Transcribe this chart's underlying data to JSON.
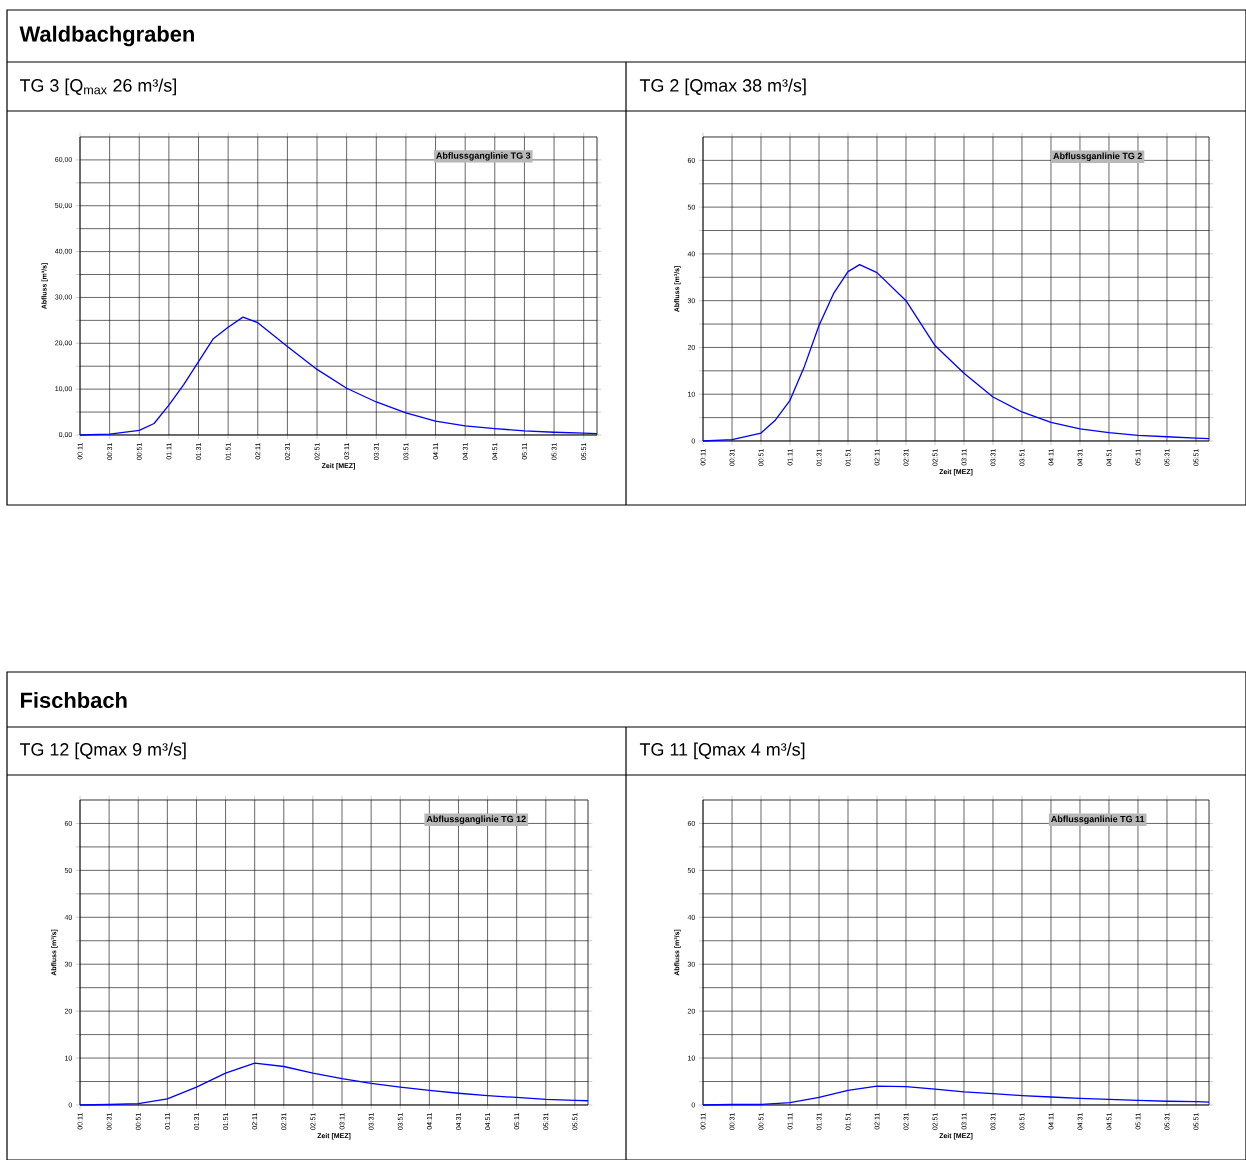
{
  "chart_data": [
    {
      "type": "line",
      "title": "Waldbachgraben",
      "subtitle": "TG 3 [Q$_{max}$ 26 m³/s]",
      "xlabel": "Zeit [MEZ]",
      "ylabel": "Abfluss [m³/s]",
      "annotations": [
        "Abflussganglinie TG 3"
      ],
      "grid": true,
      "x": [
        0.1833,
        0.5167,
        0.85,
        1.0167,
        1.1833,
        1.35,
        1.5167,
        1.6833,
        1.85,
        2.0167,
        2.1833,
        2.5167,
        2.85,
        3.1833,
        3.5167,
        3.85,
        4.1833,
        4.5167,
        4.85,
        5.1833,
        5.5167,
        5.85,
        6.0
      ],
      "series": [
        {
          "color": "#0000ff",
          "values": [
            0,
            0.2,
            1,
            2.5,
            6.5,
            11,
            16,
            21,
            23.5,
            25.7,
            24.5,
            19.3,
            14.3,
            10.2,
            7.2,
            4.8,
            3.0,
            2.0,
            1.4,
            0.9,
            0.6,
            0.4,
            0.3
          ]
        }
      ],
      "xlim": [
        0.1833,
        6.0
      ],
      "ylim": [
        0,
        65
      ],
      "xticks": [
        {
          "value": 0.1833,
          "label": "00:11"
        },
        {
          "value": 0.5167,
          "label": "00:31"
        },
        {
          "value": 0.85,
          "label": "00:51"
        },
        {
          "value": 1.1833,
          "label": "01:11"
        },
        {
          "value": 1.5167,
          "label": "01:31"
        },
        {
          "value": 1.85,
          "label": "01:51"
        },
        {
          "value": 2.1833,
          "label": "02:11"
        },
        {
          "value": 2.5167,
          "label": "02:31"
        },
        {
          "value": 2.85,
          "label": "02:51"
        },
        {
          "value": 3.1833,
          "label": "03:11"
        },
        {
          "value": 3.5167,
          "label": "03:31"
        },
        {
          "value": 3.85,
          "label": "03:51"
        },
        {
          "value": 4.1833,
          "label": "04:11"
        },
        {
          "value": 4.5167,
          "label": "04:31"
        },
        {
          "value": 4.85,
          "label": "04:51"
        },
        {
          "value": 5.1833,
          "label": "05:11"
        },
        {
          "value": 5.5167,
          "label": "05:31"
        },
        {
          "value": 5.85,
          "label": "05:51"
        }
      ],
      "yticks": [
        {
          "value": 0,
          "label": "0,00"
        },
        {
          "value": 5,
          "label": null
        },
        {
          "value": 10,
          "label": "10,00"
        },
        {
          "value": 15,
          "label": null
        },
        {
          "value": 20,
          "label": "20,00"
        },
        {
          "value": 25,
          "label": null
        },
        {
          "value": 30,
          "label": "30,00"
        },
        {
          "value": 35,
          "label": null
        },
        {
          "value": 40,
          "label": "40,00"
        },
        {
          "value": 45,
          "label": null
        },
        {
          "value": 50,
          "label": "50,00"
        },
        {
          "value": 55,
          "label": null
        },
        {
          "value": 60,
          "label": "60,00"
        }
      ]
    },
    {
      "type": "line",
      "subtitle": "TG 2 [Qmax 38 m³/s]",
      "xlabel": "Zeit [MEZ]",
      "ylabel": "Abfluss [m³/s]",
      "annotations": [
        "Abflussganlinie TG 2"
      ],
      "grid": true,
      "x": [
        0.1833,
        0.5167,
        0.85,
        1.0167,
        1.1833,
        1.35,
        1.5167,
        1.6833,
        1.85,
        1.9833,
        2.1833,
        2.5167,
        2.85,
        3.1833,
        3.5167,
        3.85,
        4.1833,
        4.5167,
        4.85,
        5.1833,
        5.5167,
        5.85,
        6.0
      ],
      "series": [
        {
          "color": "#0000ff",
          "values": [
            0,
            0.3,
            1.7,
            4.5,
            8.7,
            16,
            24.7,
            31.5,
            36.2,
            37.7,
            36,
            30,
            20.4,
            14.5,
            9.4,
            6.2,
            4.0,
            2.6,
            1.8,
            1.2,
            0.9,
            0.6,
            0.5
          ]
        }
      ],
      "xlim": [
        0.1833,
        6.0
      ],
      "ylim": [
        0,
        65
      ],
      "xticks": [
        {
          "value": 0.1833,
          "label": "00:11"
        },
        {
          "value": 0.5167,
          "label": "00:31"
        },
        {
          "value": 0.85,
          "label": "00:51"
        },
        {
          "value": 1.1833,
          "label": "01:11"
        },
        {
          "value": 1.5167,
          "label": "01:31"
        },
        {
          "value": 1.85,
          "label": "01:51"
        },
        {
          "value": 2.1833,
          "label": "02:11"
        },
        {
          "value": 2.5167,
          "label": "02:31"
        },
        {
          "value": 2.85,
          "label": "02:51"
        },
        {
          "value": 3.1833,
          "label": "03:11"
        },
        {
          "value": 3.5167,
          "label": "03:31"
        },
        {
          "value": 3.85,
          "label": "03:51"
        },
        {
          "value": 4.1833,
          "label": "04:11"
        },
        {
          "value": 4.5167,
          "label": "04:31"
        },
        {
          "value": 4.85,
          "label": "04:51"
        },
        {
          "value": 5.1833,
          "label": "05:11"
        },
        {
          "value": 5.5167,
          "label": "05:31"
        },
        {
          "value": 5.85,
          "label": "05:51"
        }
      ],
      "yticks": [
        0,
        {
          "value": 5,
          "label": null
        },
        10,
        {
          "value": 15,
          "label": null
        },
        20,
        {
          "value": 25,
          "label": null
        },
        30,
        {
          "value": 35,
          "label": null
        },
        40,
        {
          "value": 45,
          "label": null
        },
        50,
        {
          "value": 55,
          "label": null
        },
        60
      ]
    },
    {
      "type": "line",
      "title": "Fischbach",
      "subtitle": "TG 12 [Qmax 9 m³/s]",
      "xlabel": "Zeit [MEZ]",
      "ylabel": "Abfluss [m³/s]",
      "annotations": [
        "Abflussganglinie TG 12"
      ],
      "grid": true,
      "x": [
        0.1833,
        0.5167,
        0.85,
        1.1833,
        1.5167,
        1.85,
        2.1833,
        2.5167,
        2.85,
        3.1833,
        3.5167,
        3.85,
        4.1833,
        4.5167,
        4.85,
        5.1833,
        5.5167,
        5.85,
        6.0
      ],
      "series": [
        {
          "color": "#0000ff",
          "values": [
            0,
            0.1,
            0.3,
            1.3,
            3.8,
            6.8,
            8.9,
            8.2,
            6.8,
            5.6,
            4.6,
            3.8,
            3.1,
            2.5,
            2.0,
            1.6,
            1.2,
            1.0,
            0.9
          ]
        }
      ],
      "xlim": [
        0.1833,
        6.0
      ],
      "ylim": [
        0,
        65
      ],
      "xticks": [
        {
          "value": 0.1833,
          "label": "00:11"
        },
        {
          "value": 0.5167,
          "label": "00:31"
        },
        {
          "value": 0.85,
          "label": "00:51"
        },
        {
          "value": 1.1833,
          "label": "01:11"
        },
        {
          "value": 1.5167,
          "label": "01:31"
        },
        {
          "value": 1.85,
          "label": "01:51"
        },
        {
          "value": 2.1833,
          "label": "02:11"
        },
        {
          "value": 2.5167,
          "label": "02:31"
        },
        {
          "value": 2.85,
          "label": "02:51"
        },
        {
          "value": 3.1833,
          "label": "03:11"
        },
        {
          "value": 3.5167,
          "label": "03:31"
        },
        {
          "value": 3.85,
          "label": "03:51"
        },
        {
          "value": 4.1833,
          "label": "04:11"
        },
        {
          "value": 4.5167,
          "label": "04:31"
        },
        {
          "value": 4.85,
          "label": "04:51"
        },
        {
          "value": 5.1833,
          "label": "05:11"
        },
        {
          "value": 5.5167,
          "label": "05:31"
        },
        {
          "value": 5.85,
          "label": "05:51"
        }
      ],
      "yticks": [
        0,
        {
          "value": 5,
          "label": null
        },
        10,
        {
          "value": 15,
          "label": null
        },
        20,
        {
          "value": 25,
          "label": null
        },
        30,
        {
          "value": 35,
          "label": null
        },
        40,
        {
          "value": 45,
          "label": null
        },
        50,
        {
          "value": 55,
          "label": null
        },
        60
      ]
    },
    {
      "type": "line",
      "subtitle": "TG 11 [Qmax 4 m³/s]",
      "xlabel": "Zeit [MEZ]",
      "ylabel": "Abfluss [m³/s]",
      "annotations": [
        "Abflussganlinie TG 11"
      ],
      "grid": true,
      "x": [
        0.1833,
        0.5167,
        0.85,
        1.1833,
        1.5167,
        1.85,
        2.1833,
        2.5167,
        2.85,
        3.1833,
        3.5167,
        3.85,
        4.1833,
        4.5167,
        4.85,
        5.1833,
        5.5167,
        5.85,
        6.0
      ],
      "series": [
        {
          "color": "#0000ff",
          "values": [
            0,
            0.1,
            0.1,
            0.5,
            1.6,
            3.1,
            4.0,
            3.9,
            3.4,
            2.8,
            2.4,
            2.0,
            1.7,
            1.4,
            1.2,
            1.0,
            0.8,
            0.7,
            0.6
          ]
        }
      ],
      "xlim": [
        0.1833,
        6.0
      ],
      "ylim": [
        0,
        65
      ],
      "xticks": [
        {
          "value": 0.1833,
          "label": "00:11"
        },
        {
          "value": 0.5167,
          "label": "00:31"
        },
        {
          "value": 0.85,
          "label": "00:51"
        },
        {
          "value": 1.1833,
          "label": "01:11"
        },
        {
          "value": 1.5167,
          "label": "01:31"
        },
        {
          "value": 1.85,
          "label": "01:51"
        },
        {
          "value": 2.1833,
          "label": "02:11"
        },
        {
          "value": 2.5167,
          "label": "02:31"
        },
        {
          "value": 2.85,
          "label": "02:51"
        },
        {
          "value": 3.1833,
          "label": "03:11"
        },
        {
          "value": 3.5167,
          "label": "03:31"
        },
        {
          "value": 3.85,
          "label": "03:51"
        },
        {
          "value": 4.1833,
          "label": "04:11"
        },
        {
          "value": 4.5167,
          "label": "04:31"
        },
        {
          "value": 4.85,
          "label": "04:51"
        },
        {
          "value": 5.1833,
          "label": "05:11"
        },
        {
          "value": 5.5167,
          "label": "05:31"
        },
        {
          "value": 5.85,
          "label": "05:51"
        }
      ],
      "yticks": [
        0,
        {
          "value": 5,
          "label": null
        },
        10,
        {
          "value": 15,
          "label": null
        },
        20,
        {
          "value": 25,
          "label": null
        },
        30,
        {
          "value": 35,
          "label": null
        },
        40,
        {
          "value": 45,
          "label": null
        },
        50,
        {
          "value": 55,
          "label": null
        },
        60
      ]
    }
  ]
}
